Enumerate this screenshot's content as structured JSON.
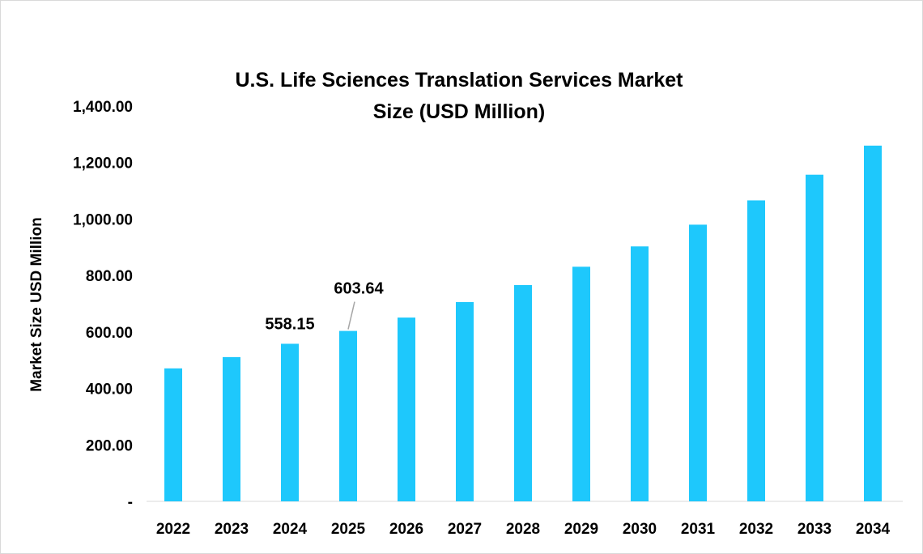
{
  "chart_data": {
    "type": "bar",
    "title": "U.S. Life Sciences Translation Services Market Size (USD Million)",
    "title_lines": [
      "U.S. Life Sciences Translation Services Market",
      "Size (USD Million)"
    ],
    "xlabel": "",
    "ylabel": "Market Size USD Million",
    "categories": [
      "2022",
      "2023",
      "2024",
      "2025",
      "2026",
      "2027",
      "2028",
      "2029",
      "2030",
      "2031",
      "2032",
      "2033",
      "2034"
    ],
    "values": [
      471,
      511,
      558.15,
      603.64,
      651,
      706,
      766,
      831,
      903,
      980,
      1066,
      1157,
      1260
    ],
    "data_labels": [
      {
        "index": 2,
        "text": "558.15"
      },
      {
        "index": 3,
        "text": "603.64"
      }
    ],
    "ylim": [
      0,
      1400
    ],
    "yticks": [
      {
        "value": 0,
        "label": "-"
      },
      {
        "value": 200,
        "label": "200.00"
      },
      {
        "value": 400,
        "label": "400.00"
      },
      {
        "value": 600,
        "label": "600.00"
      },
      {
        "value": 800,
        "label": "800.00"
      },
      {
        "value": 1000,
        "label": "1,000.00"
      },
      {
        "value": 1200,
        "label": "1,200.00"
      },
      {
        "value": 1400,
        "label": "1,400.00"
      }
    ],
    "grid": false,
    "legend": "none",
    "bar_color": "#1EC8FC"
  }
}
